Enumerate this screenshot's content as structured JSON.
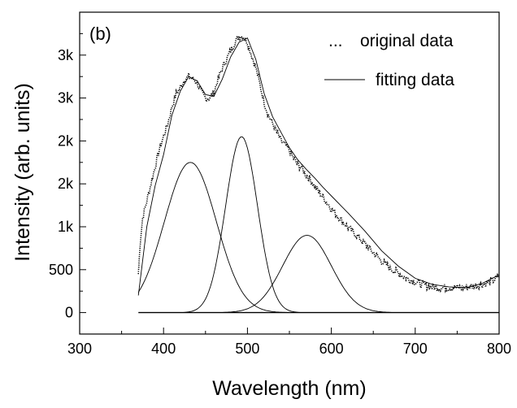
{
  "chart_data": {
    "type": "line",
    "panel_label": "(b)",
    "xlabel": "Wavelength (nm)",
    "ylabel": "Intensity (arb. units)",
    "xlim": [
      300,
      800
    ],
    "ylim": [
      -250,
      3500
    ],
    "x_ticks": [
      300,
      400,
      500,
      600,
      700,
      800
    ],
    "x_tick_labels": [
      "300",
      "400",
      "500",
      "600",
      "700",
      "800"
    ],
    "y_ticks": [
      0,
      500,
      1000,
      1500,
      2000,
      2500,
      3000
    ],
    "y_tick_labels": [
      "0",
      "500",
      "1k",
      "2k",
      "2k",
      "3k",
      "3k"
    ],
    "legend": {
      "position": "top-right",
      "entries": [
        {
          "symbol": "...",
          "label": "original data"
        },
        {
          "symbol": "line",
          "label": "fitting data"
        }
      ]
    },
    "series": [
      {
        "name": "original data",
        "style": "dotted",
        "x": [
          370,
          372,
          375,
          380,
          385,
          390,
          395,
          400,
          405,
          410,
          415,
          420,
          425,
          430,
          435,
          440,
          445,
          450,
          455,
          460,
          465,
          470,
          475,
          480,
          485,
          490,
          495,
          500,
          505,
          510,
          515,
          520,
          525,
          530,
          535,
          540,
          545,
          550,
          555,
          560,
          565,
          570,
          575,
          580,
          590,
          600,
          610,
          620,
          630,
          640,
          650,
          660,
          670,
          680,
          690,
          700,
          710,
          720,
          730,
          740,
          750,
          760,
          770,
          780,
          790,
          800
        ],
        "y": [
          450,
          800,
          1100,
          1300,
          1500,
          1700,
          1900,
          2050,
          2200,
          2400,
          2550,
          2620,
          2720,
          2750,
          2720,
          2680,
          2560,
          2500,
          2500,
          2560,
          2720,
          2850,
          2950,
          3050,
          3150,
          3220,
          3220,
          3150,
          3000,
          2850,
          2650,
          2450,
          2300,
          2200,
          2100,
          2000,
          1950,
          1880,
          1800,
          1720,
          1680,
          1600,
          1550,
          1470,
          1350,
          1210,
          1100,
          990,
          900,
          800,
          700,
          600,
          520,
          460,
          400,
          360,
          320,
          300,
          290,
          290,
          290,
          295,
          310,
          330,
          360,
          420
        ]
      },
      {
        "name": "fitting data",
        "style": "solid",
        "x": [
          370,
          380,
          390,
          400,
          410,
          420,
          430,
          440,
          450,
          460,
          470,
          480,
          490,
          500,
          510,
          520,
          530,
          540,
          550,
          560,
          570,
          580,
          590,
          600,
          620,
          640,
          660,
          680,
          700,
          720,
          740,
          760,
          780,
          800
        ],
        "y": [
          200,
          1000,
          1480,
          1840,
          2300,
          2580,
          2750,
          2700,
          2540,
          2520,
          2720,
          2980,
          3150,
          3200,
          2950,
          2550,
          2280,
          2100,
          1920,
          1780,
          1670,
          1570,
          1460,
          1360,
          1160,
          950,
          720,
          540,
          400,
          330,
          300,
          290,
          340,
          440
        ]
      }
    ],
    "gaussian_components": [
      {
        "center": 432,
        "amplitude": 1750,
        "sigma": 31
      },
      {
        "center": 493,
        "amplitude": 2050,
        "sigma": 19
      },
      {
        "center": 571,
        "amplitude": 900,
        "sigma": 29
      }
    ],
    "baseline": {
      "x": [
        370,
        800
      ],
      "y": [
        0,
        0
      ]
    }
  }
}
